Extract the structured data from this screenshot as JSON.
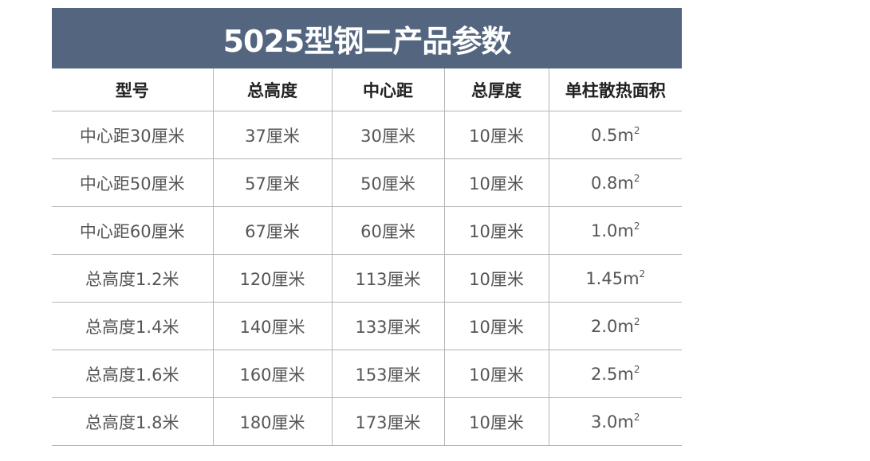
{
  "title": "5025型钢二产品参数",
  "colors": {
    "title_bg": "#53657f",
    "border": "#b5b5b5"
  },
  "headers": [
    "型号",
    "总高度",
    "中心距",
    "总厚度",
    "单柱散热面积"
  ],
  "rows": [
    [
      "中心距30厘米",
      "37厘米",
      "30厘米",
      "10厘米",
      "0.5m",
      "2"
    ],
    [
      "中心距50厘米",
      "57厘米",
      "50厘米",
      "10厘米",
      "0.8m",
      "2"
    ],
    [
      "中心距60厘米",
      "67厘米",
      "60厘米",
      "10厘米",
      "1.0m",
      "2"
    ],
    [
      "总高度1.2米",
      "120厘米",
      "113厘米",
      "10厘米",
      "1.45m",
      "2"
    ],
    [
      "总高度1.4米",
      "140厘米",
      "133厘米",
      "10厘米",
      "2.0m",
      "2"
    ],
    [
      "总高度1.6米",
      "160厘米",
      "153厘米",
      "10厘米",
      "2.5m",
      "2"
    ],
    [
      "总高度1.8米",
      "180厘米",
      "173厘米",
      "10厘米",
      "3.0m",
      "2"
    ]
  ]
}
